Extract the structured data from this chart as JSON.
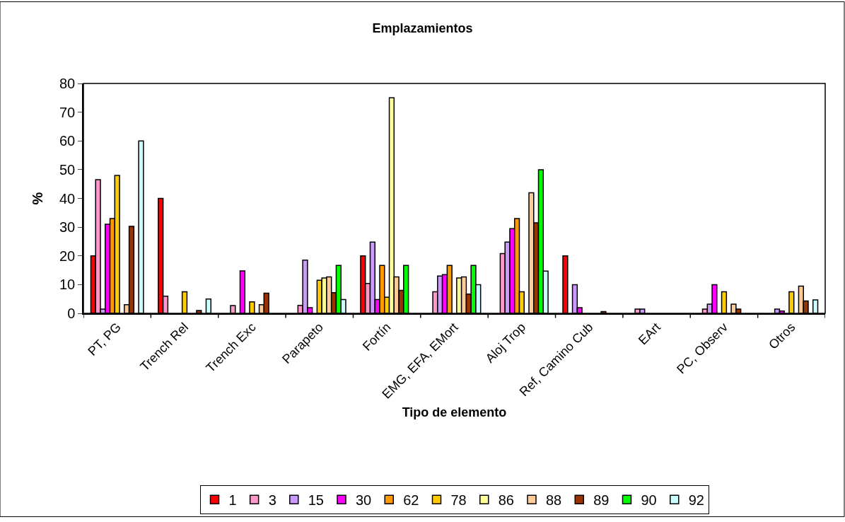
{
  "chart_data": {
    "type": "bar",
    "title": "Emplazamientos",
    "xlabel": "Tipo de elemento",
    "ylabel": "%",
    "categories": [
      "PT, PG",
      "Trench Rel",
      "Trench Exc",
      "Parapeto",
      "Fortín",
      "EMG, EFA, EMort",
      "Aloj Trop",
      "Ref, Camino Cub",
      "EArt",
      "PC, Observ",
      "Otros"
    ],
    "ylim": [
      0,
      80
    ],
    "yticks": [
      0,
      10,
      20,
      30,
      40,
      50,
      60,
      70,
      80
    ],
    "legend": "bottom",
    "series": [
      {
        "name": "1",
        "color": "#ff0000",
        "values": [
          20,
          40,
          0,
          0,
          20,
          0,
          0,
          20,
          0,
          0,
          0
        ]
      },
      {
        "name": "3",
        "color": "#ff99cc",
        "values": [
          46.5,
          6,
          2.7,
          2.8,
          10.4,
          7.5,
          20.8,
          0,
          1.5,
          1.5,
          0
        ]
      },
      {
        "name": "15",
        "color": "#cc99ff",
        "values": [
          1.5,
          0,
          0,
          18.5,
          24.8,
          13,
          24.8,
          10,
          1.5,
          3.2,
          1.5
        ]
      },
      {
        "name": "30",
        "color": "#ff00ff",
        "values": [
          31,
          0,
          14.8,
          2,
          4.8,
          13.5,
          29.5,
          2,
          0,
          10,
          0.8
        ]
      },
      {
        "name": "62",
        "color": "#ff9900",
        "values": [
          33,
          0,
          0,
          0,
          16.7,
          16.7,
          33,
          0,
          0,
          0,
          0
        ]
      },
      {
        "name": "78",
        "color": "#ffcc00",
        "values": [
          48,
          7.5,
          4,
          11.5,
          5.6,
          0,
          7.5,
          0,
          0,
          7.5,
          7.5
        ]
      },
      {
        "name": "86",
        "color": "#ffff99",
        "values": [
          0,
          0,
          0,
          12.3,
          75,
          12.3,
          0,
          0,
          0,
          0,
          0
        ]
      },
      {
        "name": "88",
        "color": "#ffcc99",
        "values": [
          3,
          0,
          3,
          12.7,
          12.7,
          12.7,
          42,
          0,
          0,
          3.2,
          9.5
        ]
      },
      {
        "name": "89",
        "color": "#993300",
        "values": [
          30.3,
          1,
          7,
          7.2,
          8,
          6.7,
          31.5,
          0.6,
          0,
          1.5,
          4.3
        ]
      },
      {
        "name": "90",
        "color": "#00ff00",
        "values": [
          0,
          0,
          0,
          16.7,
          16.7,
          16.7,
          50,
          0,
          0,
          0,
          0
        ]
      },
      {
        "name": "92",
        "color": "#ccffff",
        "values": [
          60,
          5,
          0,
          4.8,
          0,
          10,
          14.7,
          0,
          0,
          0,
          4.7
        ]
      }
    ]
  }
}
